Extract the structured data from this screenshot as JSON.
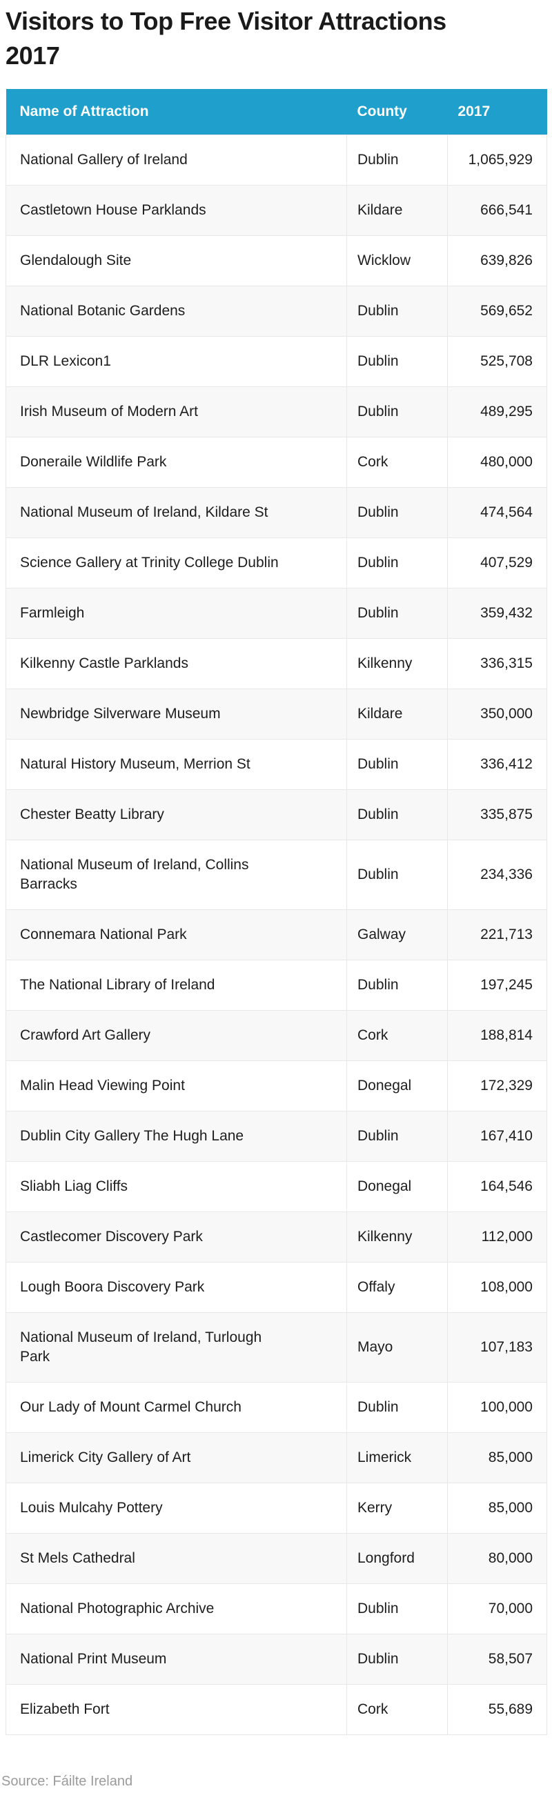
{
  "title": "Visitors to Top Free Visitor Attractions 2017",
  "source_note": "Source: Fáilte Ireland",
  "colors": {
    "header_bg": "#1F9FCB",
    "header_text": "#FFFFFF",
    "row_alt": "#F8F8F8",
    "border": "#E7E7E7",
    "title_text": "#1A1A1A",
    "body_text": "#1D1D1D",
    "source_text": "#9B9B9B"
  },
  "chart_data": {
    "type": "table",
    "title": "Visitors to Top Free Visitor Attractions 2017",
    "columns": [
      "Name of Attraction",
      "County",
      "2017"
    ],
    "rows": [
      {
        "name": "National Gallery of Ireland",
        "county": "Dublin",
        "value": "1,065,929"
      },
      {
        "name": "Castletown House Parklands",
        "county": "Kildare",
        "value": "666,541"
      },
      {
        "name": "Glendalough Site",
        "county": "Wicklow",
        "value": "639,826"
      },
      {
        "name": "National Botanic Gardens",
        "county": "Dublin",
        "value": "569,652"
      },
      {
        "name": "DLR Lexicon1",
        "county": "Dublin",
        "value": "525,708"
      },
      {
        "name": "Irish Museum of Modern Art",
        "county": "Dublin",
        "value": "489,295"
      },
      {
        "name": "Doneraile Wildlife Park",
        "county": "Cork",
        "value": "480,000"
      },
      {
        "name": "National Museum of Ireland, Kildare St",
        "county": "Dublin",
        "value": "474,564"
      },
      {
        "name": "Science Gallery at Trinity College Dublin",
        "county": "Dublin",
        "value": "407,529"
      },
      {
        "name": "Farmleigh",
        "county": "Dublin",
        "value": "359,432"
      },
      {
        "name": "Kilkenny Castle Parklands",
        "county": "Kilkenny",
        "value": "336,315"
      },
      {
        "name": "Newbridge Silverware Museum",
        "county": "Kildare",
        "value": "350,000"
      },
      {
        "name": "Natural History Museum, Merrion St",
        "county": "Dublin",
        "value": "336,412"
      },
      {
        "name": "Chester Beatty Library",
        "county": "Dublin",
        "value": "335,875"
      },
      {
        "name": "National Museum of Ireland, Collins Barracks",
        "county": "Dublin",
        "value": "234,336"
      },
      {
        "name": "Connemara National Park",
        "county": "Galway",
        "value": "221,713"
      },
      {
        "name": "The National Library of Ireland",
        "county": "Dublin",
        "value": "197,245"
      },
      {
        "name": "Crawford Art Gallery",
        "county": "Cork",
        "value": "188,814"
      },
      {
        "name": "Malin Head Viewing Point",
        "county": "Donegal",
        "value": "172,329"
      },
      {
        "name": "Dublin City Gallery The Hugh Lane",
        "county": "Dublin",
        "value": "167,410"
      },
      {
        "name": "Sliabh Liag Cliffs",
        "county": "Donegal",
        "value": "164,546"
      },
      {
        "name": "Castlecomer Discovery Park",
        "county": "Kilkenny",
        "value": "112,000"
      },
      {
        "name": "Lough Boora Discovery Park",
        "county": "Offaly",
        "value": "108,000"
      },
      {
        "name": "National Museum of Ireland, Turlough Park",
        "county": "Mayo",
        "value": "107,183"
      },
      {
        "name": "Our Lady of Mount Carmel Church",
        "county": "Dublin",
        "value": "100,000"
      },
      {
        "name": "Limerick City Gallery of Art",
        "county": "Limerick",
        "value": "85,000"
      },
      {
        "name": "Louis Mulcahy Pottery",
        "county": "Kerry",
        "value": "85,000"
      },
      {
        "name": "St Mels Cathedral",
        "county": "Longford",
        "value": "80,000"
      },
      {
        "name": "National Photographic Archive",
        "county": "Dublin",
        "value": "70,000"
      },
      {
        "name": "National Print Museum",
        "county": "Dublin",
        "value": "58,507"
      },
      {
        "name": "Elizabeth Fort",
        "county": "Cork",
        "value": "55,689"
      }
    ]
  }
}
